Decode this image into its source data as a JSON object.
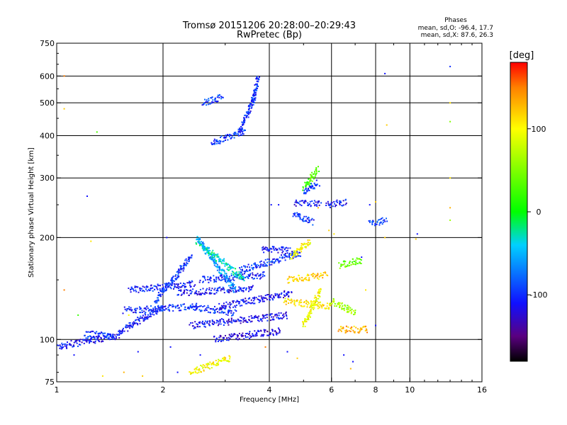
{
  "chart_data": {
    "type": "scatter",
    "title": "Tromsø 20151206 20:28:00–20:29:43",
    "subtitle": "RwPretec (Bp)",
    "xlabel": "Frequency [MHz]",
    "ylabel": "Stationary phase Virtual Height [km]",
    "x_scale": "log",
    "y_scale": "log",
    "xlim": [
      1,
      16
    ],
    "ylim": [
      75,
      750
    ],
    "x_ticks": [
      1,
      2,
      4,
      6,
      8,
      10,
      16
    ],
    "x_tick_labels": [
      "1",
      "2",
      "4",
      "6",
      "8",
      "10",
      "16"
    ],
    "x_grid": [
      2,
      4,
      6,
      8,
      10
    ],
    "y_ticks": [
      75,
      100,
      200,
      300,
      400,
      500,
      600,
      750
    ],
    "y_tick_labels": [
      "75",
      "100",
      "200",
      "300",
      "400",
      "500",
      "600",
      "750"
    ],
    "y_grid": [
      100,
      200,
      300,
      400,
      500,
      600
    ],
    "grid": true,
    "legend": {
      "title": "Phases",
      "lines": [
        "mean, sd,O: -96.4, 17.7",
        "mean, sd,X:  87.6, 26.3"
      ],
      "position": "top-right"
    },
    "colorbar": {
      "label": "[deg]",
      "min": -180,
      "max": 180,
      "ticks": [
        100,
        0,
        -100
      ],
      "tick_labels": [
        "100",
        "0",
        "-100"
      ],
      "stops": [
        {
          "v": -180,
          "c": "#000000"
        },
        {
          "v": -150,
          "c": "#5a0080"
        },
        {
          "v": -110,
          "c": "#1010ff"
        },
        {
          "v": -40,
          "c": "#00d0ff"
        },
        {
          "v": 0,
          "c": "#00ff00"
        },
        {
          "v": 100,
          "c": "#ffff00"
        },
        {
          "v": 150,
          "c": "#ff8000"
        },
        {
          "v": 180,
          "c": "#ff0000"
        }
      ]
    },
    "traces": [
      {
        "freq": [
          1.0,
          1.5
        ],
        "height": [
          95,
          103
        ],
        "phase": -110
      },
      {
        "freq": [
          1.2,
          1.45
        ],
        "height": [
          104,
          102
        ],
        "phase": -100
      },
      {
        "freq": [
          1.5,
          2.0
        ],
        "height": [
          105,
          125
        ],
        "phase": -105
      },
      {
        "freq": [
          1.55,
          2.5
        ],
        "height": [
          122,
          125
        ],
        "phase": -100
      },
      {
        "freq": [
          1.6,
          2.45
        ],
        "height": [
          140,
          146
        ],
        "phase": -105
      },
      {
        "freq": [
          1.9,
          2.4
        ],
        "height": [
          130,
          175
        ],
        "phase": -100
      },
      {
        "freq": [
          2.2,
          3.6
        ],
        "height": [
          137,
          142
        ],
        "phase": -110
      },
      {
        "freq": [
          2.4,
          4.5
        ],
        "height": [
          110,
          118
        ],
        "phase": -115
      },
      {
        "freq": [
          2.4,
          3.2
        ],
        "height": [
          125,
          120
        ],
        "phase": -100
      },
      {
        "freq": [
          2.5,
          3.2
        ],
        "height": [
          200,
          140
        ],
        "phase": -60
      },
      {
        "freq": [
          2.55,
          3.9
        ],
        "height": [
          150,
          155
        ],
        "phase": -105
      },
      {
        "freq": [
          2.8,
          4.3
        ],
        "height": [
          100,
          106
        ],
        "phase": -120
      },
      {
        "freq": [
          2.9,
          4.6
        ],
        "height": [
          125,
          137
        ],
        "phase": -115
      },
      {
        "freq": [
          3.3,
          4.9
        ],
        "height": [
          160,
          180
        ],
        "phase": -100
      },
      {
        "freq": [
          3.8,
          4.6
        ],
        "height": [
          185,
          183
        ],
        "phase": -110
      },
      {
        "freq": [
          2.6,
          2.95
        ],
        "height": [
          500,
          520
        ],
        "phase": -95
      },
      {
        "freq": [
          2.75,
          3.4
        ],
        "height": [
          380,
          410
        ],
        "phase": -100
      },
      {
        "freq": [
          3.3,
          3.65
        ],
        "height": [
          410,
          530
        ],
        "phase": -100
      },
      {
        "freq": [
          3.6,
          3.72
        ],
        "height": [
          500,
          600
        ],
        "phase": -95
      },
      {
        "freq": [
          4.7,
          5.6
        ],
        "height": [
          252,
          252
        ],
        "phase": -110
      },
      {
        "freq": [
          4.7,
          5.3
        ],
        "height": [
          235,
          222
        ],
        "phase": -100
      },
      {
        "freq": [
          5.0,
          5.5
        ],
        "height": [
          270,
          290
        ],
        "phase": -95
      },
      {
        "freq": [
          5.8,
          6.6
        ],
        "height": [
          250,
          255
        ],
        "phase": -110
      },
      {
        "freq": [
          7.7,
          8.6
        ],
        "height": [
          220,
          225
        ],
        "phase": -90
      },
      {
        "freq": [
          4.5,
          5.8
        ],
        "height": [
          150,
          155
        ],
        "phase": 120
      },
      {
        "freq": [
          4.4,
          6.0
        ],
        "height": [
          130,
          125
        ],
        "phase": 110
      },
      {
        "freq": [
          5.0,
          5.6
        ],
        "height": [
          110,
          140
        ],
        "phase": 100
      },
      {
        "freq": [
          5.0,
          5.5
        ],
        "height": [
          280,
          320
        ],
        "phase": 30
      },
      {
        "freq": [
          6.3,
          7.6
        ],
        "height": [
          107,
          107
        ],
        "phase": 130
      },
      {
        "freq": [
          6.3,
          7.3
        ],
        "height": [
          165,
          172
        ],
        "phase": 40
      },
      {
        "freq": [
          4.6,
          5.2
        ],
        "height": [
          175,
          195
        ],
        "phase": 100
      },
      {
        "freq": [
          6.0,
          7.0
        ],
        "height": [
          130,
          120
        ],
        "phase": 60
      },
      {
        "freq": [
          2.4,
          3.1
        ],
        "height": [
          80,
          88
        ],
        "phase": 100
      },
      {
        "freq": [
          2.5,
          3.4
        ],
        "height": [
          195,
          150
        ],
        "phase": -30
      }
    ],
    "points": [
      {
        "freq": 1.05,
        "height": 600,
        "phase": 150
      },
      {
        "freq": 1.05,
        "height": 480,
        "phase": 120
      },
      {
        "freq": 1.3,
        "height": 410,
        "phase": 30
      },
      {
        "freq": 1.22,
        "height": 265,
        "phase": -110
      },
      {
        "freq": 1.25,
        "height": 195,
        "phase": 110
      },
      {
        "freq": 1.05,
        "height": 140,
        "phase": 150
      },
      {
        "freq": 1.15,
        "height": 118,
        "phase": 20
      },
      {
        "freq": 1.6,
        "height": 118,
        "phase": 100
      },
      {
        "freq": 1.35,
        "height": 78,
        "phase": 110
      },
      {
        "freq": 1.55,
        "height": 80,
        "phase": 130
      },
      {
        "freq": 1.7,
        "height": 92,
        "phase": -110
      },
      {
        "freq": 1.12,
        "height": 90,
        "phase": -110
      },
      {
        "freq": 1.75,
        "height": 78,
        "phase": 120
      },
      {
        "freq": 2.05,
        "height": 200,
        "phase": -110
      },
      {
        "freq": 2.1,
        "height": 95,
        "phase": -110
      },
      {
        "freq": 2.55,
        "height": 90,
        "phase": -110
      },
      {
        "freq": 4.5,
        "height": 92,
        "phase": -110
      },
      {
        "freq": 4.8,
        "height": 88,
        "phase": 120
      },
      {
        "freq": 6.5,
        "height": 90,
        "phase": -110
      },
      {
        "freq": 6.9,
        "height": 86,
        "phase": -110
      },
      {
        "freq": 6.8,
        "height": 82,
        "phase": 130
      },
      {
        "freq": 4.25,
        "height": 250,
        "phase": -110
      },
      {
        "freq": 4.05,
        "height": 250,
        "phase": -110
      },
      {
        "freq": 7.3,
        "height": 175,
        "phase": -110
      },
      {
        "freq": 7.7,
        "height": 250,
        "phase": -110
      },
      {
        "freq": 8.0,
        "height": 255,
        "phase": 120
      },
      {
        "freq": 8.5,
        "height": 200,
        "phase": 120
      },
      {
        "freq": 8.5,
        "height": 610,
        "phase": -110
      },
      {
        "freq": 8.6,
        "height": 430,
        "phase": 120
      },
      {
        "freq": 10.5,
        "height": 205,
        "phase": -110
      },
      {
        "freq": 10.4,
        "height": 198,
        "phase": 120
      },
      {
        "freq": 13.0,
        "height": 640,
        "phase": -100
      },
      {
        "freq": 13.0,
        "height": 500,
        "phase": 110
      },
      {
        "freq": 13.0,
        "height": 440,
        "phase": 50
      },
      {
        "freq": 13.0,
        "height": 300,
        "phase": 110
      },
      {
        "freq": 13.0,
        "height": 245,
        "phase": 130
      },
      {
        "freq": 13.0,
        "height": 225,
        "phase": 60
      },
      {
        "freq": 5.9,
        "height": 210,
        "phase": 120
      },
      {
        "freq": 6.1,
        "height": 205,
        "phase": 110
      },
      {
        "freq": 8.0,
        "height": 110,
        "phase": -110
      },
      {
        "freq": 7.5,
        "height": 140,
        "phase": 110
      },
      {
        "freq": 5.5,
        "height": 245,
        "phase": 130
      },
      {
        "freq": 3.9,
        "height": 95,
        "phase": 150
      },
      {
        "freq": 2.2,
        "height": 80,
        "phase": -110
      }
    ]
  }
}
